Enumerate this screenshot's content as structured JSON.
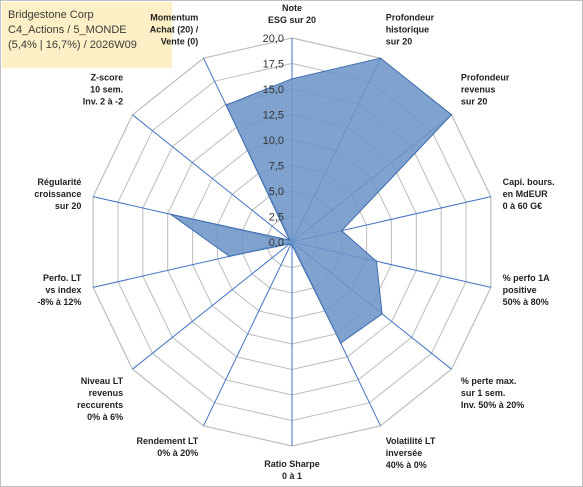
{
  "title_lines": [
    "Bridgestone Corp",
    "C4_Actions / 5_MONDE",
    "(5,4% | 16,7%) / 2026W09"
  ],
  "colors": {
    "fill": "#6d95c8",
    "stroke": "#3f6fae",
    "grid": "#bdbdbd",
    "spoke": "#4472c4",
    "title_bg": "#fdf0c6"
  },
  "chart_data": {
    "type": "radar",
    "rmin": 0,
    "rmax": 20,
    "ticks": [
      "0,0",
      "2,5",
      "5,0",
      "7,5",
      "10,0",
      "12,5",
      "15,0",
      "17,5",
      "20,0"
    ],
    "axes": [
      {
        "label": [
          "Note",
          "ESG sur 20"
        ],
        "value": 16.0
      },
      {
        "label": [
          "Profondeur",
          "historique",
          "sur 20"
        ],
        "value": 20.0
      },
      {
        "label": [
          "Profondeur",
          "revenus",
          "sur 20"
        ],
        "value": 20.0
      },
      {
        "label": [
          "Capi. bours.",
          "en MdEUR",
          "0 à 60 G€"
        ],
        "value": 5.0
      },
      {
        "label": [
          "% perfo 1A",
          "positive",
          "50% à 80%"
        ],
        "value": 8.5
      },
      {
        "label": [
          "% perte max.",
          "sur 1 sem.",
          "Inv. 50% à 20%"
        ],
        "value": 11.3
      },
      {
        "label": [
          "Volatilité LT",
          "inversée",
          "40% à 0%"
        ],
        "value": 11.0
      },
      {
        "label": [
          "Ratio Sharpe",
          "0 à 1"
        ],
        "value": 0.3
      },
      {
        "label": [
          "Rendement LT",
          "0% à 20%"
        ],
        "value": 0.3
      },
      {
        "label": [
          "Niveau LT",
          "revenus",
          "reccurents",
          "0% à 6%"
        ],
        "value": 0.3
      },
      {
        "label": [
          "Perfo. LT",
          "vs index",
          "-8% à 12%"
        ],
        "value": 6.3
      },
      {
        "label": [
          "Régularité",
          "croissance",
          "sur 20"
        ],
        "value": 12.2
      },
      {
        "label": [
          "Z-score",
          "10 sem.",
          "Inv. 2 à -2"
        ],
        "value": 0.3
      },
      {
        "label": [
          "Momentum",
          "Achat (20) /",
          "Vente (0)"
        ],
        "value": 14.9
      }
    ]
  }
}
